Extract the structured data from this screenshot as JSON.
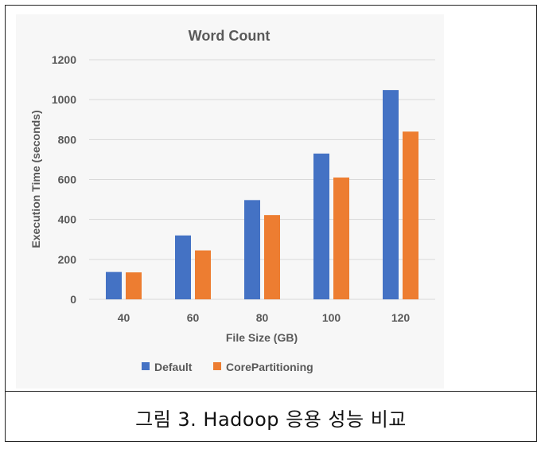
{
  "caption": "그림 3. Hadoop 응용 성능 비교",
  "colors": {
    "default": "#4472C4",
    "corepartitioning": "#ED7D31",
    "grid": "#d9d9d9",
    "text": "#595959"
  },
  "chart_data": {
    "type": "bar",
    "title": "Word Count",
    "xlabel": "File Size (GB)",
    "ylabel": "Execution Time (seconds)",
    "categories": [
      "40",
      "60",
      "80",
      "100",
      "120"
    ],
    "ylim": [
      0,
      1200
    ],
    "yticks": [
      "0",
      "200",
      "400",
      "600",
      "800",
      "1000",
      "1200"
    ],
    "grid": true,
    "legend_position": "bottom",
    "series": [
      {
        "name": "Default",
        "values": [
          137,
          320,
          497,
          730,
          1048
        ]
      },
      {
        "name": "CorePartitioning",
        "values": [
          135,
          245,
          422,
          610,
          840
        ]
      }
    ]
  }
}
